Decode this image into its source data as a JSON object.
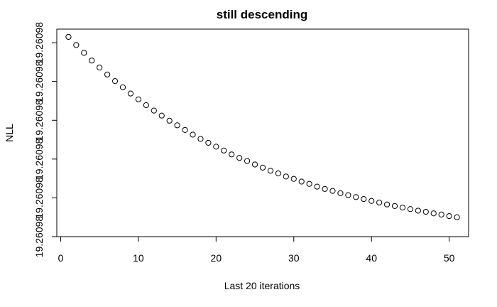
{
  "chart_data": {
    "type": "scatter",
    "title": "still descending",
    "xlabel": "Last 20 iterations",
    "ylabel": "NLL",
    "x_ticks": [
      0,
      10,
      20,
      30,
      40,
      50
    ],
    "y_ticks": [
      0,
      1,
      2,
      3,
      4,
      5
    ],
    "y_tick_labels": [
      "19.26098",
      "19.26098",
      "19.26098",
      "19.26098",
      "19.26098",
      "19.26098"
    ],
    "xlim": [
      -0.5,
      52.5
    ],
    "ylim": [
      0,
      5.35
    ],
    "grid": false,
    "x": [
      1,
      2,
      3,
      4,
      5,
      6,
      7,
      8,
      9,
      10,
      11,
      12,
      13,
      14,
      15,
      16,
      17,
      18,
      19,
      20,
      21,
      22,
      23,
      24,
      25,
      26,
      27,
      28,
      29,
      30,
      31,
      32,
      33,
      34,
      35,
      36,
      37,
      38,
      39,
      40,
      41,
      42,
      43,
      44,
      45,
      46,
      47,
      48,
      49,
      50,
      51
    ],
    "y": [
      5.15,
      4.94,
      4.74,
      4.54,
      4.36,
      4.18,
      4.01,
      3.85,
      3.69,
      3.54,
      3.39,
      3.25,
      3.12,
      2.99,
      2.87,
      2.75,
      2.63,
      2.52,
      2.42,
      2.32,
      2.22,
      2.12,
      2.03,
      1.95,
      1.86,
      1.78,
      1.7,
      1.63,
      1.55,
      1.49,
      1.42,
      1.36,
      1.29,
      1.23,
      1.18,
      1.12,
      1.07,
      1.02,
      0.97,
      0.92,
      0.88,
      0.83,
      0.79,
      0.75,
      0.71,
      0.67,
      0.64,
      0.6,
      0.57,
      0.53,
      0.5
    ]
  }
}
